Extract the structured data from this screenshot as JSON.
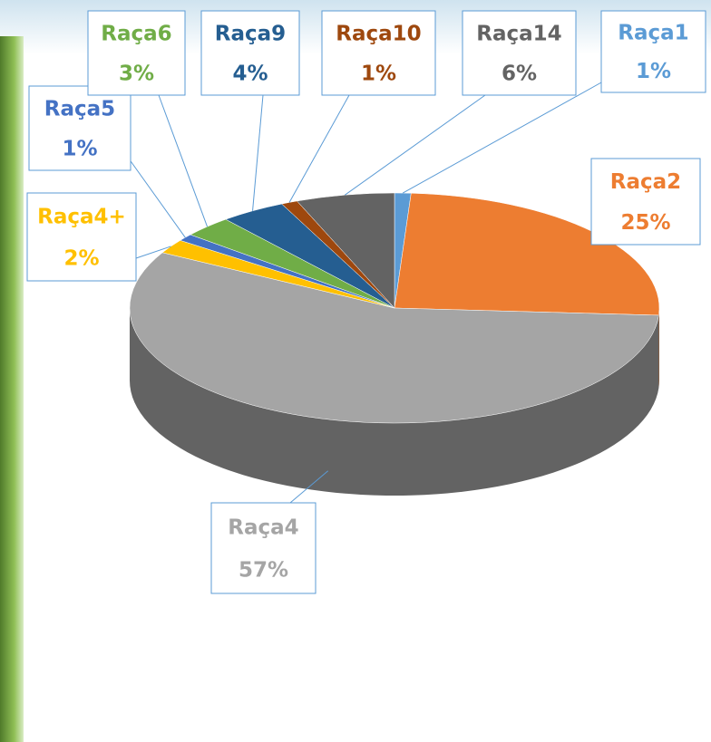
{
  "chart_data": {
    "type": "pie",
    "categories": [
      "Raça1",
      "Raça2",
      "Raça4",
      "Raça4+",
      "Raça5",
      "Raça6",
      "Raça9",
      "Raça10",
      "Raça14"
    ],
    "values": [
      1,
      25,
      57,
      2,
      1,
      3,
      4,
      1,
      6
    ],
    "value_labels": [
      "1%",
      "25%",
      "57%",
      "2%",
      "1%",
      "3%",
      "4%",
      "1%",
      "6%"
    ],
    "colors": [
      "#5b9bd5",
      "#ed7d31",
      "#a5a5a5",
      "#ffc000",
      "#4472c4",
      "#70ad47",
      "#255e91",
      "#9e480e",
      "#636363"
    ]
  }
}
